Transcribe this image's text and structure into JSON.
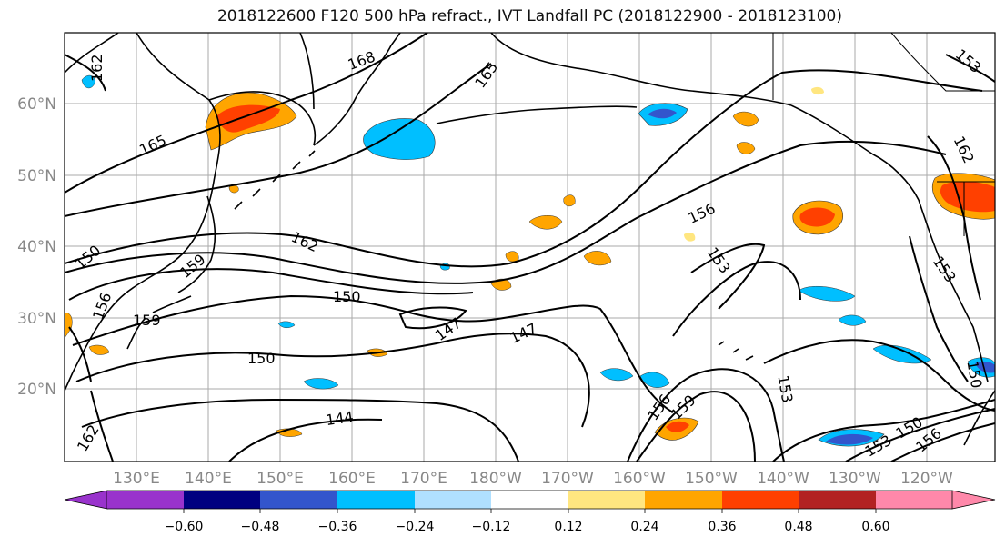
{
  "title": "2018122600 F120 500 hPa refract., IVT Landfall PC (2018122900 - 2018123100)",
  "map": {
    "lon_labels": [
      "130°E",
      "140°E",
      "150°E",
      "160°E",
      "170°E",
      "180°W",
      "170°W",
      "160°W",
      "150°W",
      "140°W",
      "130°W",
      "120°W"
    ],
    "lat_labels": [
      "60°N",
      "50°N",
      "40°N",
      "30°N",
      "20°N"
    ],
    "contour_labels": [
      "162",
      "165",
      "168",
      "165",
      "162",
      "159",
      "156",
      "159",
      "150",
      "147",
      "147",
      "150",
      "144",
      "156",
      "153",
      "156",
      "159",
      "153",
      "162",
      "153",
      "150",
      "150",
      "153",
      "156",
      "162",
      "153",
      "150"
    ]
  },
  "colorbar": {
    "ticks": [
      "−0.60",
      "−0.48",
      "−0.36",
      "−0.24",
      "−0.12",
      "0.12",
      "0.24",
      "0.36",
      "0.48",
      "0.60"
    ],
    "colors": {
      "under": "#9933cc",
      "bins": [
        "#9933cc",
        "#000080",
        "#3355cc",
        "#00bfff",
        "#b0e0ff",
        "#ffffff",
        "#ffe680",
        "#ffa500",
        "#ff4000",
        "#b22222",
        "#ff88aa"
      ],
      "over": "#ff88aa"
    }
  },
  "colors": {
    "positive_strong": "#ff4000",
    "positive_mid": "#ffa500",
    "positive_weak": "#ffe680",
    "negative_weak": "#b0e0ff",
    "negative_mid": "#00bfff",
    "negative_strong": "#3355cc",
    "contour": "#000000",
    "grid": "#aaaaaa",
    "tick_label": "#888888"
  }
}
